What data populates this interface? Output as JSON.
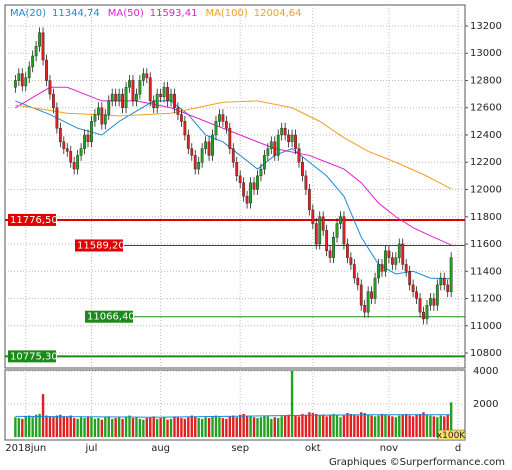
{
  "chart_data": {
    "type": "candlestick",
    "up_color": "#22a022",
    "down_color": "#e02020",
    "xlim": [
      -3,
      130
    ],
    "xticks": [
      {
        "value": 3,
        "label": "2018jun"
      },
      {
        "value": 22,
        "label": "jul"
      },
      {
        "value": 42,
        "label": "aug"
      },
      {
        "value": 65,
        "label": "sep"
      },
      {
        "value": 86,
        "label": "okt"
      },
      {
        "value": 108,
        "label": "nov"
      },
      {
        "value": 128,
        "label": "d"
      }
    ],
    "ylim": [
      10690,
      13354
    ],
    "yticks": [
      10800,
      11000,
      11200,
      11400,
      11600,
      11800,
      12000,
      12200,
      12400,
      12600,
      12800,
      13000,
      13200
    ],
    "ohlc": [
      [
        12750,
        12840,
        12710,
        12800
      ],
      [
        12800,
        12890,
        12760,
        12850
      ],
      [
        12850,
        12890,
        12720,
        12760
      ],
      [
        12760,
        12860,
        12720,
        12820
      ],
      [
        12820,
        12940,
        12780,
        12900
      ],
      [
        12900,
        13020,
        12860,
        12980
      ],
      [
        12980,
        13090,
        12940,
        13050
      ],
      [
        13050,
        13190,
        13010,
        13150
      ],
      [
        13150,
        13190,
        12910,
        12950
      ],
      [
        12950,
        12990,
        12760,
        12800
      ],
      [
        12800,
        12840,
        12660,
        12700
      ],
      [
        12700,
        12740,
        12560,
        12600
      ],
      [
        12600,
        12640,
        12410,
        12450
      ],
      [
        12450,
        12490,
        12310,
        12350
      ],
      [
        12350,
        12390,
        12260,
        12300
      ],
      [
        12300,
        12340,
        12240,
        12280
      ],
      [
        12280,
        12320,
        12160,
        12200
      ],
      [
        12200,
        12240,
        12110,
        12150
      ],
      [
        12150,
        12290,
        12110,
        12250
      ],
      [
        12250,
        12340,
        12210,
        12300
      ],
      [
        12300,
        12440,
        12260,
        12400
      ],
      [
        12400,
        12440,
        12310,
        12350
      ],
      [
        12350,
        12540,
        12310,
        12500
      ],
      [
        12500,
        12590,
        12460,
        12550
      ],
      [
        12550,
        12640,
        12510,
        12600
      ],
      [
        12600,
        12640,
        12440,
        12480
      ],
      [
        12480,
        12590,
        12440,
        12550
      ],
      [
        12550,
        12690,
        12510,
        12650
      ],
      [
        12650,
        12740,
        12610,
        12700
      ],
      [
        12700,
        12740,
        12610,
        12650
      ],
      [
        12650,
        12740,
        12610,
        12700
      ],
      [
        12700,
        12740,
        12560,
        12600
      ],
      [
        12600,
        12790,
        12560,
        12750
      ],
      [
        12750,
        12840,
        12710,
        12800
      ],
      [
        12800,
        12840,
        12610,
        12650
      ],
      [
        12650,
        12740,
        12610,
        12700
      ],
      [
        12700,
        12840,
        12660,
        12800
      ],
      [
        12800,
        12890,
        12760,
        12850
      ],
      [
        12850,
        12890,
        12780,
        12820
      ],
      [
        12820,
        12860,
        12610,
        12650
      ],
      [
        12650,
        12690,
        12560,
        12600
      ],
      [
        12600,
        12740,
        12560,
        12700
      ],
      [
        12700,
        12740,
        12640,
        12680
      ],
      [
        12680,
        12790,
        12640,
        12750
      ],
      [
        12750,
        12790,
        12610,
        12650
      ],
      [
        12650,
        12740,
        12610,
        12700
      ],
      [
        12700,
        12740,
        12560,
        12600
      ],
      [
        12600,
        12640,
        12510,
        12550
      ],
      [
        12550,
        12590,
        12460,
        12500
      ],
      [
        12500,
        12540,
        12360,
        12400
      ],
      [
        12400,
        12440,
        12260,
        12300
      ],
      [
        12300,
        12340,
        12210,
        12250
      ],
      [
        12250,
        12290,
        12110,
        12150
      ],
      [
        12150,
        12240,
        12110,
        12200
      ],
      [
        12200,
        12340,
        12160,
        12300
      ],
      [
        12300,
        12390,
        12260,
        12350
      ],
      [
        12350,
        12390,
        12210,
        12250
      ],
      [
        12250,
        12440,
        12210,
        12400
      ],
      [
        12400,
        12540,
        12360,
        12500
      ],
      [
        12500,
        12590,
        12460,
        12550
      ],
      [
        12550,
        12590,
        12460,
        12500
      ],
      [
        12500,
        12540,
        12410,
        12450
      ],
      [
        12450,
        12490,
        12260,
        12300
      ],
      [
        12300,
        12340,
        12160,
        12200
      ],
      [
        12200,
        12240,
        12060,
        12100
      ],
      [
        12100,
        12140,
        12010,
        12050
      ],
      [
        12050,
        12090,
        11910,
        11950
      ],
      [
        11950,
        11990,
        11860,
        11900
      ],
      [
        11900,
        12090,
        11860,
        12050
      ],
      [
        12050,
        12090,
        11960,
        12000
      ],
      [
        12000,
        12140,
        11960,
        12100
      ],
      [
        12100,
        12190,
        12060,
        12150
      ],
      [
        12150,
        12290,
        12110,
        12250
      ],
      [
        12250,
        12340,
        12210,
        12300
      ],
      [
        12300,
        12390,
        12260,
        12350
      ],
      [
        12350,
        12390,
        12210,
        12250
      ],
      [
        12250,
        12440,
        12210,
        12400
      ],
      [
        12400,
        12490,
        12360,
        12450
      ],
      [
        12450,
        12490,
        12360,
        12400
      ],
      [
        12400,
        12440,
        12310,
        12350
      ],
      [
        12350,
        12440,
        12310,
        12400
      ],
      [
        12400,
        12440,
        12260,
        12300
      ],
      [
        12300,
        12340,
        12160,
        12200
      ],
      [
        12200,
        12240,
        12060,
        12100
      ],
      [
        12100,
        12140,
        11960,
        12000
      ],
      [
        12000,
        12040,
        11810,
        11850
      ],
      [
        11850,
        11890,
        11710,
        11750
      ],
      [
        11750,
        11790,
        11560,
        11600
      ],
      [
        11600,
        11840,
        11560,
        11800
      ],
      [
        11800,
        11840,
        11660,
        11700
      ],
      [
        11700,
        11740,
        11510,
        11550
      ],
      [
        11550,
        11590,
        11460,
        11500
      ],
      [
        11500,
        11690,
        11460,
        11650
      ],
      [
        11650,
        11790,
        11610,
        11750
      ],
      [
        11750,
        11840,
        11710,
        11800
      ],
      [
        11800,
        11840,
        11560,
        11600
      ],
      [
        11600,
        11640,
        11460,
        11500
      ],
      [
        11500,
        11540,
        11410,
        11450
      ],
      [
        11450,
        11490,
        11310,
        11350
      ],
      [
        11350,
        11390,
        11260,
        11300
      ],
      [
        11300,
        11340,
        11110,
        11150
      ],
      [
        11150,
        11190,
        11060,
        11100
      ],
      [
        11100,
        11290,
        11060,
        11250
      ],
      [
        11250,
        11290,
        11160,
        11200
      ],
      [
        11200,
        11390,
        11160,
        11350
      ],
      [
        11350,
        11490,
        11310,
        11450
      ],
      [
        11450,
        11490,
        11360,
        11400
      ],
      [
        11400,
        11590,
        11360,
        11550
      ],
      [
        11550,
        11590,
        11460,
        11500
      ],
      [
        11500,
        11540,
        11410,
        11450
      ],
      [
        11450,
        11540,
        11410,
        11500
      ],
      [
        11500,
        11640,
        11460,
        11600
      ],
      [
        11600,
        11640,
        11410,
        11450
      ],
      [
        11450,
        11490,
        11360,
        11400
      ],
      [
        11400,
        11440,
        11260,
        11300
      ],
      [
        11300,
        11340,
        11210,
        11250
      ],
      [
        11250,
        11290,
        11160,
        11200
      ],
      [
        11200,
        11240,
        11060,
        11100
      ],
      [
        11100,
        11140,
        11010,
        11050
      ],
      [
        11050,
        11190,
        11010,
        11150
      ],
      [
        11150,
        11240,
        11110,
        11200
      ],
      [
        11200,
        11240,
        11110,
        11150
      ],
      [
        11150,
        11340,
        11110,
        11300
      ],
      [
        11300,
        11390,
        11260,
        11350
      ],
      [
        11350,
        11390,
        11260,
        11300
      ],
      [
        11300,
        11340,
        11210,
        11250
      ],
      [
        11250,
        11540,
        11210,
        11500
      ]
    ],
    "moving_averages": [
      {
        "name": "MA(20)",
        "color": "#1a8ad6",
        "last_label": "11344,74",
        "x": [
          0,
          10,
          18,
          25,
          30,
          40,
          45,
          50,
          55,
          60,
          65,
          70,
          75,
          80,
          85,
          90,
          95,
          100,
          105,
          110,
          115,
          120,
          126
        ],
        "values": [
          12650,
          12550,
          12450,
          12400,
          12500,
          12650,
          12650,
          12550,
          12400,
          12350,
          12250,
          12150,
          12250,
          12300,
          12200,
          12100,
          11950,
          11650,
          11450,
          11380,
          11400,
          11350,
          11344.74
        ]
      },
      {
        "name": "MA(50)",
        "color": "#e020d0",
        "last_label": "11593,41",
        "x": [
          0,
          10,
          15,
          25,
          35,
          45,
          55,
          65,
          75,
          85,
          90,
          95,
          100,
          105,
          110,
          115,
          120,
          126
        ],
        "values": [
          12600,
          12750,
          12750,
          12650,
          12650,
          12600,
          12500,
          12400,
          12300,
          12250,
          12200,
          12150,
          12050,
          11900,
          11800,
          11720,
          11660,
          11593.41
        ]
      },
      {
        "name": "MA(100)",
        "color": "#f0a020",
        "last_label": "12004,64",
        "x": [
          0,
          15,
          30,
          45,
          60,
          70,
          80,
          88,
          95,
          102,
          110,
          118,
          126
        ],
        "values": [
          12620,
          12560,
          12540,
          12560,
          12640,
          12650,
          12600,
          12500,
          12380,
          12280,
          12200,
          12110,
          12004.64
        ]
      }
    ],
    "levels": [
      {
        "value": 11776.5,
        "label": "11776,50",
        "color": "#e00000"
      },
      {
        "value": 11589.2,
        "label": "11589,20",
        "color": "#e00000"
      },
      {
        "value": 11066.4,
        "label": "11066,40",
        "color": "#1a8a1a"
      },
      {
        "value": 10775.3,
        "label": "10775,30",
        "color": "#1a8a1a"
      }
    ],
    "volume": {
      "unit": "x100K",
      "ylim": [
        0,
        4000
      ],
      "yticks": [
        2000,
        4000
      ],
      "ma_color": "#1a8ad6",
      "values": [
        1200,
        1150,
        1100,
        1250,
        1300,
        1200,
        1350,
        1400,
        2600,
        1300,
        1250,
        1200,
        1300,
        1350,
        1250,
        1200,
        1300,
        1150,
        1100,
        1200,
        1150,
        1250,
        1200,
        1100,
        1150,
        1050,
        1200,
        1250,
        1100,
        1150,
        1200,
        1100,
        1250,
        1300,
        1150,
        1200,
        1100,
        1050,
        1150,
        1200,
        1250,
        1100,
        1150,
        1200,
        1050,
        1100,
        1250,
        1200,
        1150,
        1100,
        1200,
        1300,
        1250,
        1150,
        1100,
        1200,
        1150,
        1250,
        1300,
        1200,
        1150,
        1100,
        1250,
        1300,
        1200,
        1350,
        1400,
        1300,
        1250,
        1200,
        1150,
        1200,
        1300,
        1250,
        1100,
        1200,
        1150,
        1250,
        1300,
        1350,
        4000,
        1300,
        1250,
        1400,
        1350,
        1500,
        1450,
        1400,
        1300,
        1350,
        1250,
        1300,
        1400,
        1350,
        1200,
        1300,
        1450,
        1400,
        1350,
        1300,
        1500,
        1450,
        1350,
        1300,
        1250,
        1300,
        1400,
        1350,
        1300,
        1250,
        1200,
        1300,
        1350,
        1400,
        1300,
        1250,
        1350,
        1400,
        1500,
        1350,
        1300,
        1250,
        1200,
        1300,
        1250,
        1350,
        2100
      ],
      "ma": {
        "x": [
          0,
          40,
          80,
          100,
          126
        ],
        "values": [
          1250,
          1200,
          1300,
          1350,
          1350
        ]
      }
    },
    "footer": "Graphiques ©Surperformance.com"
  }
}
